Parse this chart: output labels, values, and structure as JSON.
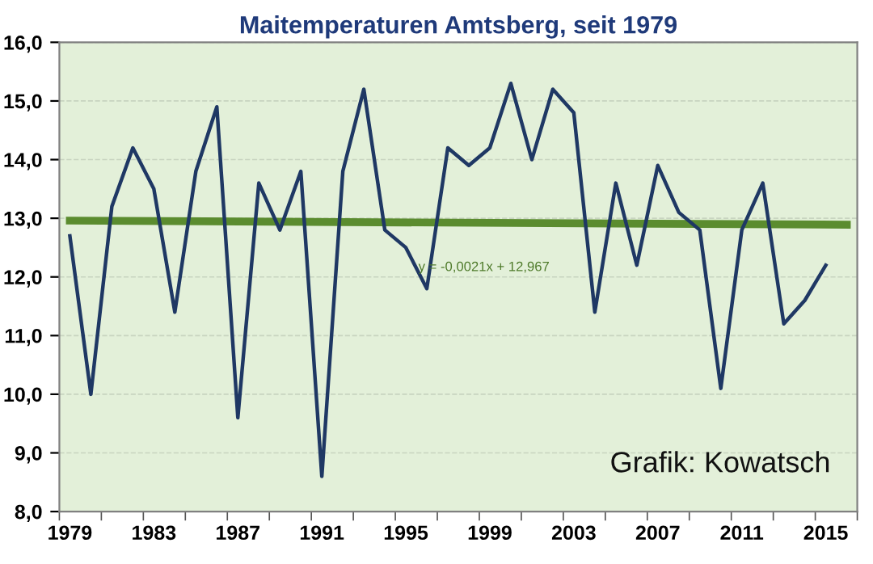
{
  "chart_data": {
    "type": "line",
    "title": "Maitemperaturen Amtsberg, seit 1979",
    "series": [
      {
        "color": "#1f3864",
        "x": [
          1979,
          1980,
          1981,
          1982,
          1983,
          1984,
          1985,
          1986,
          1987,
          1988,
          1989,
          1990,
          1991,
          1992,
          1993,
          1994,
          1995,
          1996,
          1997,
          1998,
          1999,
          2000,
          2001,
          2002,
          2003,
          2004,
          2005,
          2006,
          2007,
          2008,
          2009,
          2010,
          2011,
          2012,
          2013,
          2014,
          2015
        ],
        "values": [
          12.7,
          10.0,
          13.2,
          14.2,
          13.5,
          11.4,
          13.8,
          14.9,
          9.6,
          13.6,
          12.8,
          13.8,
          8.6,
          13.8,
          15.2,
          12.8,
          12.5,
          11.8,
          14.2,
          13.9,
          14.2,
          15.3,
          14.0,
          15.2,
          14.8,
          11.4,
          13.6,
          12.2,
          13.9,
          13.1,
          12.8,
          10.1,
          12.8,
          13.6,
          11.2,
          11.6,
          12.2
        ]
      },
      {
        "type": "line",
        "color": "#5b8c2f",
        "x": [
          1979,
          2016
        ],
        "values": [
          12.96,
          12.89
        ]
      }
    ],
    "xlim": [
      1978.5,
      2016.5
    ],
    "xticks": [
      {
        "value": 1979,
        "label": "1979"
      },
      {
        "value": 1983,
        "label": "1983"
      },
      {
        "value": 1987,
        "label": "1987"
      },
      {
        "value": 1991,
        "label": "1991"
      },
      {
        "value": 1995,
        "label": "1995"
      },
      {
        "value": 1999,
        "label": "1999"
      },
      {
        "value": 2003,
        "label": "2003"
      },
      {
        "value": 2007,
        "label": "2007"
      },
      {
        "value": 2011,
        "label": "2011"
      },
      {
        "value": 2015,
        "label": "2015"
      },
      {
        "value": 1978.5,
        "label": null
      },
      {
        "value": 1980.5,
        "label": null
      },
      {
        "value": 1982.5,
        "label": null
      },
      {
        "value": 1984.5,
        "label": null
      },
      {
        "value": 1986.5,
        "label": null
      },
      {
        "value": 1988.5,
        "label": null
      },
      {
        "value": 1990.5,
        "label": null
      },
      {
        "value": 1992.5,
        "label": null
      },
      {
        "value": 1994.5,
        "label": null
      },
      {
        "value": 1996.5,
        "label": null
      },
      {
        "value": 1998.5,
        "label": null
      },
      {
        "value": 2000.5,
        "label": null
      },
      {
        "value": 2002.5,
        "label": null
      },
      {
        "value": 2004.5,
        "label": null
      },
      {
        "value": 2006.5,
        "label": null
      },
      {
        "value": 2008.5,
        "label": null
      },
      {
        "value": 2010.5,
        "label": null
      },
      {
        "value": 2012.5,
        "label": null
      },
      {
        "value": 2014.5,
        "label": null
      },
      {
        "value": 2016.5,
        "label": null
      }
    ],
    "ylim": [
      8,
      16
    ],
    "yticks": [
      {
        "value": 8,
        "label": "8,0"
      },
      {
        "value": 9,
        "label": "9,0"
      },
      {
        "value": 10,
        "label": "10,0"
      },
      {
        "value": 11,
        "label": "11,0"
      },
      {
        "value": 12,
        "label": "12,0"
      },
      {
        "value": 13,
        "label": "13,0"
      },
      {
        "value": 14,
        "label": "14,0"
      },
      {
        "value": 15,
        "label": "15,0"
      },
      {
        "value": 16,
        "label": "16,0"
      }
    ],
    "grid": "y",
    "marker": "none",
    "line_style": "solid",
    "annotations": [
      "y = -0,0021x + 12,967",
      "Grafik: Kowatsch"
    ]
  }
}
